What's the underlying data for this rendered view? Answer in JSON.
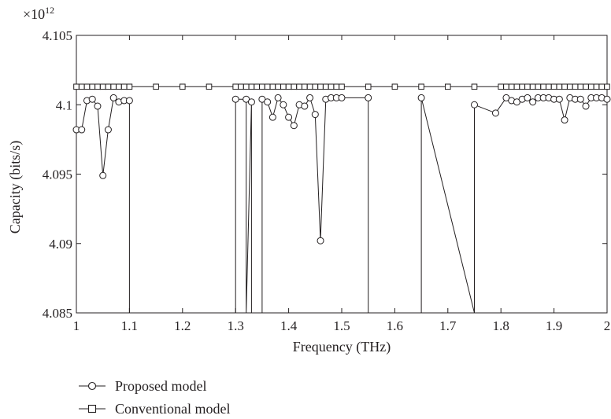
{
  "chart_data": {
    "type": "line",
    "title": "",
    "xlabel": "Frequency (THz)",
    "ylabel": "Capacity (bits/s)",
    "y_multiplier": "×10",
    "y_multiplier_exp": "12",
    "xlim": [
      1,
      2
    ],
    "ylim": [
      4.085,
      4.105
    ],
    "xticks": [
      "1",
      "1.1",
      "1.2",
      "1.3",
      "1.4",
      "1.5",
      "1.6",
      "1.7",
      "1.8",
      "1.9",
      "2"
    ],
    "yticks": [
      "4.085",
      "4.09",
      "4.095",
      "4.1",
      "4.105"
    ],
    "grid": false,
    "legend_position": "below-left",
    "series": [
      {
        "name": "Proposed model",
        "marker": "circle",
        "color": "#231f20",
        "x": [
          1.0,
          1.01,
          1.02,
          1.03,
          1.04,
          1.05,
          1.06,
          1.07,
          1.08,
          1.09,
          1.1,
          1.1,
          1.3,
          1.3,
          1.32,
          1.32,
          1.33,
          1.33,
          1.35,
          1.35,
          1.36,
          1.37,
          1.38,
          1.39,
          1.4,
          1.41,
          1.42,
          1.43,
          1.44,
          1.45,
          1.46,
          1.47,
          1.48,
          1.49,
          1.5,
          1.55,
          1.55,
          1.65,
          1.65,
          1.75,
          1.75,
          1.79,
          1.81,
          1.82,
          1.83,
          1.84,
          1.85,
          1.86,
          1.87,
          1.88,
          1.89,
          1.9,
          1.91,
          1.92,
          1.93,
          1.94,
          1.95,
          1.96,
          1.97,
          1.98,
          1.99,
          2.0
        ],
        "y": [
          4.0982,
          4.0982,
          4.1003,
          4.1004,
          4.0999,
          4.0949,
          4.0982,
          4.1005,
          4.1002,
          4.1003,
          4.1003,
          4.085,
          4.085,
          4.1004,
          4.1004,
          4.085,
          4.1002,
          4.085,
          4.085,
          4.1004,
          4.1002,
          4.0991,
          4.1005,
          4.1,
          4.0991,
          4.0985,
          4.1,
          4.0999,
          4.1005,
          4.0993,
          4.0902,
          4.1004,
          4.1005,
          4.1005,
          4.1005,
          4.1005,
          4.085,
          4.085,
          4.1005,
          4.085,
          4.1,
          4.0994,
          4.1005,
          4.1003,
          4.1002,
          4.1004,
          4.1005,
          4.1002,
          4.1005,
          4.1005,
          4.1005,
          4.1004,
          4.1004,
          4.0989,
          4.1005,
          4.1004,
          4.1004,
          4.0999,
          4.1005,
          4.1005,
          4.1005,
          4.1004
        ],
        "markers_x": [
          1.0,
          1.01,
          1.02,
          1.03,
          1.04,
          1.05,
          1.06,
          1.07,
          1.08,
          1.09,
          1.1,
          1.3,
          1.32,
          1.33,
          1.35,
          1.36,
          1.37,
          1.38,
          1.39,
          1.4,
          1.41,
          1.42,
          1.43,
          1.44,
          1.45,
          1.46,
          1.47,
          1.48,
          1.49,
          1.5,
          1.55,
          1.65,
          1.75,
          1.79,
          1.81,
          1.82,
          1.83,
          1.84,
          1.85,
          1.86,
          1.87,
          1.88,
          1.89,
          1.9,
          1.91,
          1.92,
          1.93,
          1.94,
          1.95,
          1.96,
          1.97,
          1.98,
          1.99,
          2.0
        ],
        "markers_y": [
          4.0982,
          4.0982,
          4.1003,
          4.1004,
          4.0999,
          4.0949,
          4.0982,
          4.1005,
          4.1002,
          4.1003,
          4.1003,
          4.1004,
          4.1004,
          4.1002,
          4.1004,
          4.1002,
          4.0991,
          4.1005,
          4.1,
          4.0991,
          4.0985,
          4.1,
          4.0999,
          4.1005,
          4.0993,
          4.0902,
          4.1004,
          4.1005,
          4.1005,
          4.1005,
          4.1005,
          4.1005,
          4.1,
          4.0994,
          4.1005,
          4.1003,
          4.1002,
          4.1004,
          4.1005,
          4.1002,
          4.1005,
          4.1005,
          4.1005,
          4.1004,
          4.1004,
          4.0989,
          4.1005,
          4.1004,
          4.1004,
          4.0999,
          4.1005,
          4.1005,
          4.1005,
          4.1004
        ]
      },
      {
        "name": "Conventional model",
        "marker": "square",
        "color": "#231f20",
        "constant_y": 4.1013,
        "markers_x": [
          1.0,
          1.01,
          1.02,
          1.03,
          1.04,
          1.05,
          1.06,
          1.07,
          1.08,
          1.09,
          1.1,
          1.15,
          1.2,
          1.25,
          1.3,
          1.31,
          1.32,
          1.33,
          1.34,
          1.35,
          1.36,
          1.37,
          1.38,
          1.39,
          1.4,
          1.41,
          1.42,
          1.43,
          1.44,
          1.45,
          1.46,
          1.47,
          1.48,
          1.49,
          1.5,
          1.55,
          1.6,
          1.65,
          1.7,
          1.75,
          1.8,
          1.81,
          1.82,
          1.83,
          1.84,
          1.85,
          1.86,
          1.87,
          1.88,
          1.89,
          1.9,
          1.91,
          1.92,
          1.93,
          1.94,
          1.95,
          1.96,
          1.97,
          1.98,
          1.99,
          2.0
        ]
      }
    ]
  }
}
